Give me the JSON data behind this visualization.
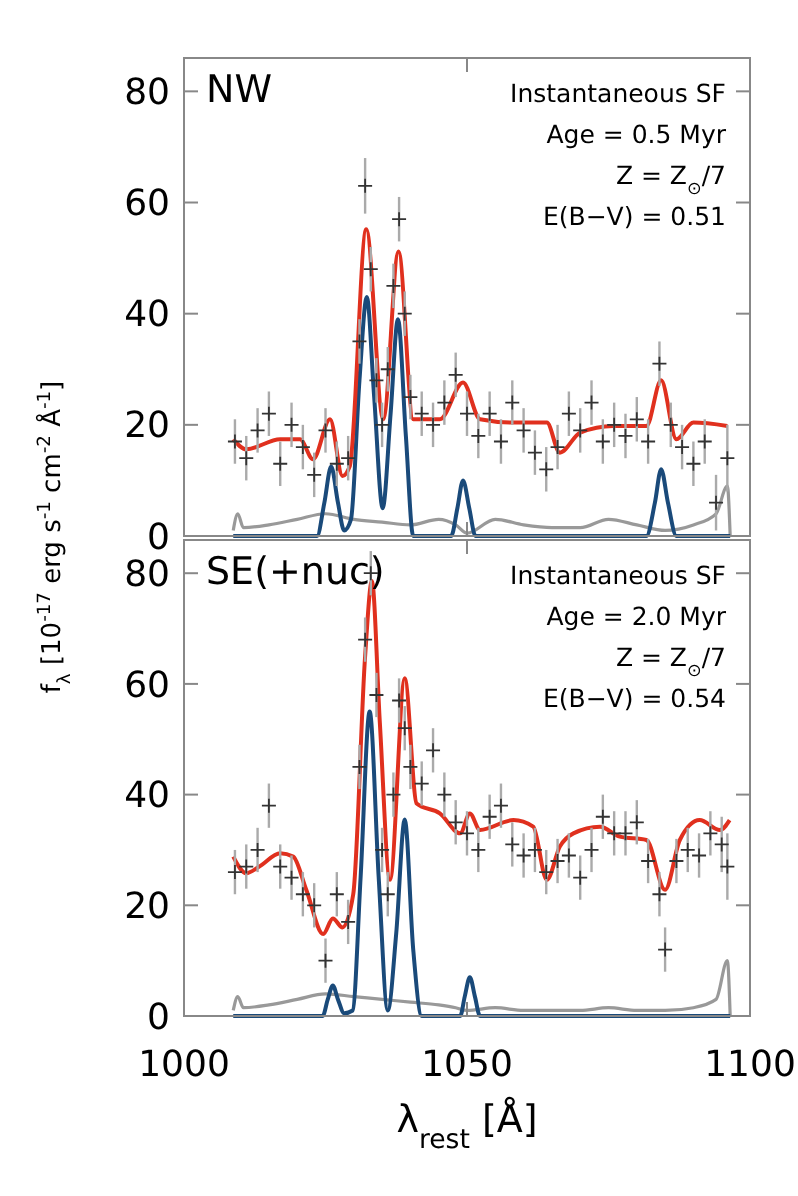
{
  "chart_data": [
    {
      "type": "line",
      "ylabel": "f$_{λ}$ [10$^{-17}$ erg s$^{-1}$ cm$^{-2}$ Å$^{-1}$]",
      "annotations": [
        "NW",
        "Instantaneous SF",
        "Age = 0.5 Myr",
        "Z = Z$_{⊙}$/7",
        "E(B−V) = 0.51"
      ],
      "xlim": [
        1000,
        1100
      ],
      "xticks": [
        1000,
        1050,
        1100
      ],
      "ylim": [
        0,
        86
      ],
      "yticks": [
        0,
        20,
        40,
        60,
        80
      ],
      "tick_labels": "y",
      "grid": false,
      "series": [
        {
          "type": "line",
          "color": "#999999",
          "x": [
            1008.7,
            1009.5,
            1010.5,
            1015,
            1020,
            1025,
            1030,
            1035,
            1040,
            1045,
            1048,
            1050,
            1055,
            1060,
            1065,
            1070,
            1075,
            1080,
            1085,
            1090,
            1094,
            1096,
            1096.5
          ],
          "values": [
            1,
            4,
            1.5,
            2,
            3,
            4,
            3,
            2.5,
            2,
            3,
            2,
            0.5,
            3,
            2,
            1.5,
            1.5,
            3,
            2,
            1,
            2,
            4,
            9,
            0
          ]
        },
        {
          "type": "scatter",
          "marker": "cross",
          "color": "#333333",
          "x": [
            1009,
            1011,
            1013,
            1015,
            1017,
            1019,
            1021,
            1023,
            1025,
            1027,
            1029,
            1031,
            1032,
            1033,
            1034,
            1035,
            1036,
            1037,
            1038,
            1039,
            1040,
            1042,
            1044,
            1046,
            1048,
            1050,
            1052,
            1054,
            1056,
            1058,
            1060,
            1062,
            1064,
            1066,
            1068,
            1070,
            1072,
            1074,
            1076,
            1078,
            1080,
            1082,
            1084,
            1086,
            1088,
            1090,
            1092,
            1094,
            1096
          ],
          "values": [
            17,
            14,
            19,
            22,
            13,
            20,
            16,
            11,
            19,
            13,
            14,
            35,
            63,
            48,
            28,
            20,
            30,
            45,
            57,
            40,
            25,
            22,
            20,
            24,
            29,
            22,
            18,
            22,
            17,
            24,
            19,
            15,
            12,
            16,
            22,
            19,
            24,
            17,
            20,
            18,
            21,
            17,
            31,
            20,
            16,
            13,
            17,
            6,
            14
          ],
          "errors": [
            4,
            4,
            4,
            4,
            4,
            4,
            4,
            4,
            4,
            4,
            4,
            4,
            5,
            4,
            4,
            4,
            4,
            4,
            4,
            4,
            4,
            4,
            4,
            4,
            4,
            4,
            4,
            4,
            4,
            4,
            4,
            4,
            4,
            4,
            4,
            4,
            4,
            4,
            4,
            4,
            4,
            4,
            4,
            4,
            4,
            4,
            4,
            5,
            6
          ]
        },
        {
          "type": "line",
          "color": "#1a4a7a",
          "x": [
            1008.7,
            1023.5,
            1024.8,
            1026,
            1027.2,
            1028.3,
            1029.5,
            1031,
            1032.3,
            1033.6,
            1035.1,
            1036.5,
            1037.8,
            1039.2,
            1040.5,
            1047.2,
            1048.3,
            1049.3,
            1050.4,
            1051.5,
            1081.7,
            1083.2,
            1084.3,
            1085.5,
            1087,
            1096.5
          ],
          "values": [
            0,
            0,
            6,
            12.5,
            6,
            1,
            3,
            28,
            43,
            25,
            5,
            22,
            39,
            18,
            0,
            0,
            5,
            10,
            5,
            0,
            0,
            6,
            12,
            6,
            0,
            0
          ]
        },
        {
          "type": "line",
          "color": "#e0301e",
          "x": [
            1008.7,
            1011,
            1017,
            1020.5,
            1022.8,
            1025.8,
            1028,
            1029.3,
            1032.2,
            1035.2,
            1037.9,
            1040.5,
            1045.2,
            1049.3,
            1052.3,
            1058.2,
            1064.1,
            1066.4,
            1070,
            1075.8,
            1081.7,
            1084.3,
            1087,
            1090,
            1096
          ],
          "values": [
            17.4,
            15.6,
            17.4,
            17.4,
            13.8,
            21,
            10.8,
            12.6,
            55.2,
            21,
            51.2,
            21,
            21,
            27.6,
            21,
            20.4,
            20.4,
            15,
            18.6,
            19.8,
            19.8,
            28,
            17.4,
            20.4,
            19.8
          ]
        }
      ]
    },
    {
      "type": "line",
      "xlabel": "λ$_{rest}$ [Å]",
      "annotations": [
        "SE(+nuc)",
        "Instantaneous SF",
        "Age = 2.0 Myr",
        "Z = Z$_{⊙}$/7",
        "E(B−V) = 0.54"
      ],
      "xlim": [
        1000,
        1100
      ],
      "xticks": [
        1000,
        1050,
        1100
      ],
      "ylim": [
        0,
        86
      ],
      "yticks": [
        0,
        20,
        40,
        60,
        80
      ],
      "grid": false,
      "series": [
        {
          "type": "line",
          "color": "#999999",
          "x": [
            1008.7,
            1009.5,
            1010.5,
            1015,
            1020,
            1025,
            1030,
            1035,
            1040,
            1045,
            1048,
            1050,
            1055,
            1060,
            1065,
            1070,
            1075,
            1080,
            1085,
            1090,
            1094,
            1096,
            1096.5
          ],
          "values": [
            1,
            3.5,
            1.5,
            2,
            3,
            4,
            3.5,
            3,
            2.5,
            2,
            1.5,
            1,
            1.5,
            1,
            1,
            1,
            1.5,
            1,
            1,
            1.5,
            3,
            10,
            0
          ]
        },
        {
          "type": "scatter",
          "marker": "cross",
          "color": "#333333",
          "x": [
            1009,
            1011,
            1013,
            1015,
            1017,
            1019,
            1021,
            1023,
            1025,
            1027,
            1029,
            1031,
            1032,
            1033,
            1034,
            1035,
            1036,
            1037,
            1038,
            1039,
            1040,
            1042,
            1044,
            1046,
            1048,
            1050,
            1052,
            1054,
            1056,
            1058,
            1060,
            1062,
            1064,
            1066,
            1068,
            1070,
            1072,
            1074,
            1076,
            1078,
            1080,
            1082,
            1084,
            1085,
            1087,
            1089,
            1091,
            1093,
            1095,
            1096
          ],
          "values": [
            26,
            27,
            30,
            38,
            27,
            25,
            22,
            20,
            10,
            22,
            17,
            45,
            68,
            80,
            58,
            30,
            22,
            40,
            57,
            52,
            45,
            42,
            48,
            40,
            35,
            33,
            30,
            36,
            38,
            31,
            29,
            30,
            26,
            28,
            29,
            25,
            30,
            36,
            33,
            33,
            35,
            28,
            22,
            12,
            28,
            30,
            29,
            33,
            31,
            27
          ],
          "errors": [
            4,
            4,
            4,
            4,
            4,
            4,
            4,
            4,
            4,
            4,
            4,
            4,
            4,
            4,
            4,
            4,
            4,
            4,
            4,
            4,
            4,
            4,
            4,
            4,
            4,
            4,
            4,
            4,
            4,
            4,
            4,
            4,
            4,
            4,
            4,
            4,
            4,
            4,
            4,
            4,
            4,
            4,
            4,
            4,
            4,
            4,
            4,
            4,
            5,
            6
          ]
        },
        {
          "type": "line",
          "color": "#1a4a7a",
          "x": [
            1008.7,
            1024.5,
            1025.4,
            1026.3,
            1027.2,
            1028.3,
            1029.8,
            1031.2,
            1032.8,
            1034.4,
            1036,
            1037.5,
            1039,
            1040.5,
            1042,
            1048.8,
            1049.6,
            1050.5,
            1051.4,
            1052.3,
            1096.5
          ],
          "values": [
            0,
            0,
            3,
            5.5,
            3,
            0.5,
            1,
            25,
            55,
            25,
            1,
            15,
            35.5,
            12,
            0,
            0,
            3.5,
            7,
            3.5,
            0,
            0
          ]
        },
        {
          "type": "line",
          "color": "#e0301e",
          "x": [
            1008.7,
            1011,
            1013.3,
            1017,
            1019.3,
            1021.6,
            1024.6,
            1026.3,
            1028,
            1029.9,
            1032,
            1033.2,
            1034.6,
            1036.4,
            1039,
            1041.1,
            1045.2,
            1048.8,
            1050.5,
            1052.3,
            1058.2,
            1061.7,
            1064.1,
            1066.4,
            1068.8,
            1073.5,
            1077,
            1081.7,
            1085,
            1087.6,
            1091.1,
            1094.7,
            1096.4
          ],
          "values": [
            28.8,
            25.8,
            27,
            29.4,
            28.8,
            22.8,
            14.8,
            17.6,
            16,
            22,
            65,
            78.6,
            53,
            24.6,
            61,
            38.4,
            36.6,
            33,
            36.6,
            33.6,
            35.4,
            34.2,
            24.6,
            30.6,
            33,
            34.2,
            32.4,
            31.8,
            22.8,
            31.8,
            35.4,
            33.6,
            35.4
          ]
        }
      ]
    }
  ]
}
